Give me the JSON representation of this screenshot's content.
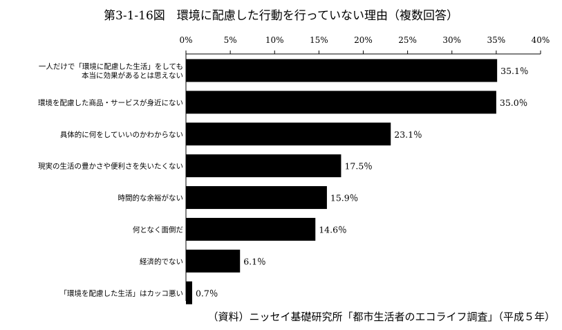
{
  "title": "第3-1-16図　環境に配慮した行動を行っていない理由（複数回答）",
  "source": "（資料）ニッセイ基礎研究所「都市生活者のエコライフ調査」（平成５年）",
  "chart_data": {
    "type": "bar",
    "orientation": "horizontal",
    "title": "第3-1-16図　環境に配慮した行動を行っていない理由（複数回答）",
    "xlim": [
      0,
      40
    ],
    "tick_step": 5,
    "tick_labels": [
      "0%",
      "5%",
      "10%",
      "15%",
      "20%",
      "25%",
      "30%",
      "35%",
      "40%"
    ],
    "categories": [
      [
        "一人だけで「環境に配慮した生活」をしても",
        "本当に効果があるとは思えない"
      ],
      [
        "環境を配慮した商品・サービスが身近にない"
      ],
      [
        "具体的に何をしていいのかわからない"
      ],
      [
        "現実の生活の豊かさや便利さを失いたくない"
      ],
      [
        "時間的な余裕がない"
      ],
      [
        "何となく面倒だ"
      ],
      [
        "経済的でない"
      ],
      [
        "「環境を配慮した生活」はカッコ悪い"
      ]
    ],
    "values": [
      35.1,
      35.0,
      23.1,
      17.5,
      15.9,
      14.6,
      6.1,
      0.7
    ],
    "value_labels": [
      "35.1％",
      "35.0％",
      "23.1％",
      "17.5％",
      "15.9％",
      "14.6％",
      "6.1％",
      "0.7％"
    ],
    "bar_color": "#000000",
    "grid": false,
    "legend": "none"
  }
}
